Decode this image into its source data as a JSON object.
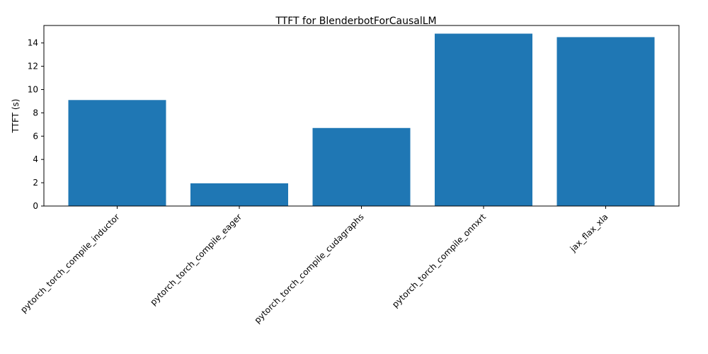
{
  "chart_data": {
    "type": "bar",
    "title": "TTFT for BlenderbotForCausalLM",
    "xlabel": "",
    "ylabel": "TTFT (s)",
    "categories": [
      "pytorch_torch_compile_inductor",
      "pytorch_torch_compile_eager",
      "pytorch_torch_compile_cudagraphs",
      "pytorch_torch_compile_onnxrt",
      "jax_flax_xla"
    ],
    "values": [
      9.1,
      1.95,
      6.7,
      14.8,
      14.5
    ],
    "ylim": [
      0,
      15.5
    ],
    "yticks": [
      0,
      2,
      4,
      6,
      8,
      10,
      12,
      14
    ],
    "bar_color": "#1f77b4",
    "grid": false,
    "legend": "none"
  }
}
